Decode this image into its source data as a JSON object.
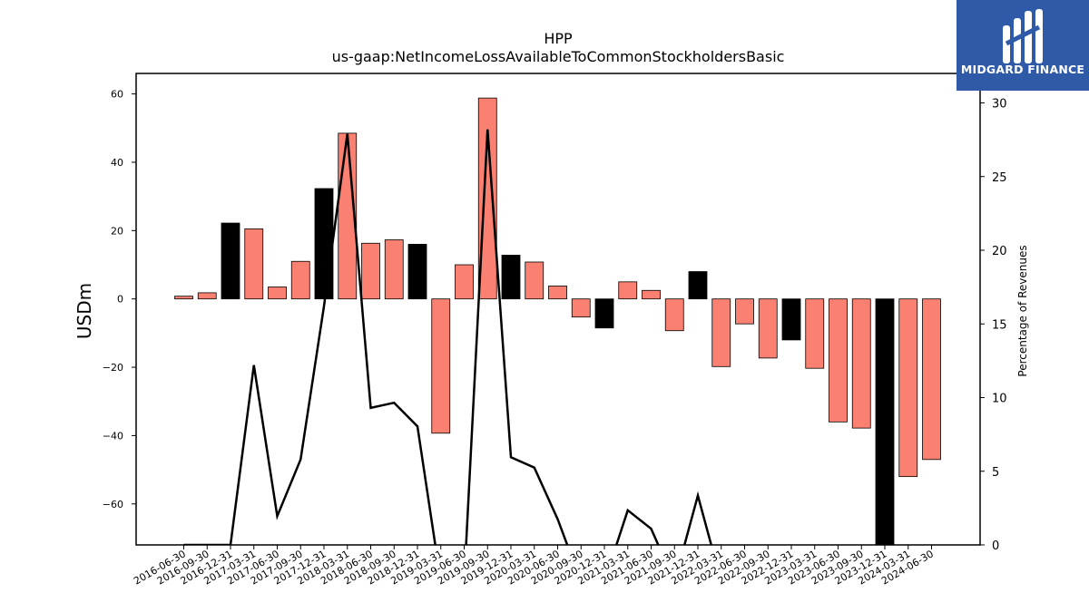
{
  "logo": {
    "text": "MIDGARD FINANCE"
  },
  "chart_data": {
    "type": "bar",
    "title": "HPP",
    "subtitle": "us-gaap:NetIncomeLossAvailableToCommonStockholdersBasic",
    "ylabel": "USDm",
    "y2label": "Percentage of Revenues",
    "ylim": [
      -72,
      66
    ],
    "y2lim": [
      0,
      32
    ],
    "yticks": [
      -60,
      -40,
      -20,
      0,
      20,
      40,
      60
    ],
    "y2ticks": [
      0,
      5,
      10,
      15,
      20,
      25,
      30
    ],
    "categories": [
      "2016-06-30",
      "2016-09-30",
      "2016-12-31",
      "2017-03-31",
      "2017-06-30",
      "2017-09-30",
      "2017-12-31",
      "2018-03-31",
      "2018-06-30",
      "2018-09-30",
      "2018-12-31",
      "2019-03-31",
      "2019-06-30",
      "2019-09-30",
      "2019-12-31",
      "2020-03-31",
      "2020-06-30",
      "2020-09-30",
      "2020-12-31",
      "2021-03-31",
      "2021-06-30",
      "2021-09-30",
      "2021-12-31",
      "2022-03-31",
      "2022-06-30",
      "2022-09-30",
      "2022-12-31",
      "2023-03-31",
      "2023-06-30",
      "2023-09-30",
      "2023-12-31",
      "2024-03-31",
      "2024-06-30"
    ],
    "series": [
      {
        "values": [
          0.8,
          1.8,
          22.2,
          20.5,
          3.5,
          11.0,
          32.3,
          48.5,
          16.3,
          17.3,
          16.0,
          -39.3,
          10.0,
          58.8,
          12.8,
          10.8,
          3.8,
          -5.3,
          -8.5,
          5.0,
          2.5,
          -9.3,
          8.0,
          -19.8,
          -7.3,
          -17.3,
          -12.0,
          -20.3,
          -36.0,
          -37.8,
          -72.0,
          -52.0,
          -47.0
        ],
        "colors": [
          "#fa8072",
          "#fa8072",
          "#000000",
          "#fa8072",
          "#fa8072",
          "#fa8072",
          "#000000",
          "#fa8072",
          "#fa8072",
          "#fa8072",
          "#000000",
          "#fa8072",
          "#fa8072",
          "#fa8072",
          "#000000",
          "#fa8072",
          "#fa8072",
          "#fa8072",
          "#000000",
          "#fa8072",
          "#fa8072",
          "#fa8072",
          "#000000",
          "#fa8072",
          "#fa8072",
          "#fa8072",
          "#000000",
          "#fa8072",
          "#fa8072",
          "#fa8072",
          "#000000",
          "#fa8072",
          "#fa8072"
        ]
      },
      {
        "type": "line",
        "axis": "right",
        "color": "#000000",
        "values": [
          0.0,
          0.0,
          0.0,
          12.2,
          1.95,
          5.8,
          16.2,
          27.9,
          9.3,
          9.65,
          8.05,
          -2.5,
          -2.5,
          28.2,
          5.95,
          5.25,
          1.75,
          -2.5,
          -2.5,
          2.35,
          1.1,
          -2.5,
          3.35,
          -2.5,
          -2.5,
          -2.5,
          -2.5,
          -2.5,
          -2.5,
          -2.5,
          -2.5,
          -2.5,
          -2.5
        ]
      }
    ]
  }
}
